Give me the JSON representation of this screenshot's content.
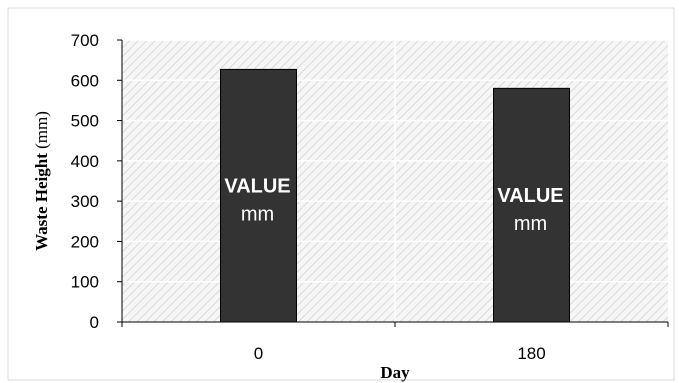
{
  "chart_data": {
    "type": "bar",
    "categories": [
      "0",
      "180"
    ],
    "values": [
      627,
      580
    ],
    "bar_labels": [
      {
        "main": "VALUE",
        "unit": "mm"
      },
      {
        "main": "VALUE",
        "unit": "mm"
      }
    ],
    "xlabel": "Day",
    "ylabel_bold": "Waste Height",
    "ylabel_rest": " (mm)",
    "ylim": [
      0,
      700
    ],
    "yticks": [
      0,
      100,
      200,
      300,
      400,
      500,
      600,
      700
    ],
    "grid": true,
    "bar_color": "#333333",
    "bar_edge_color": "#000000",
    "plot_background": "hatched light gray"
  }
}
